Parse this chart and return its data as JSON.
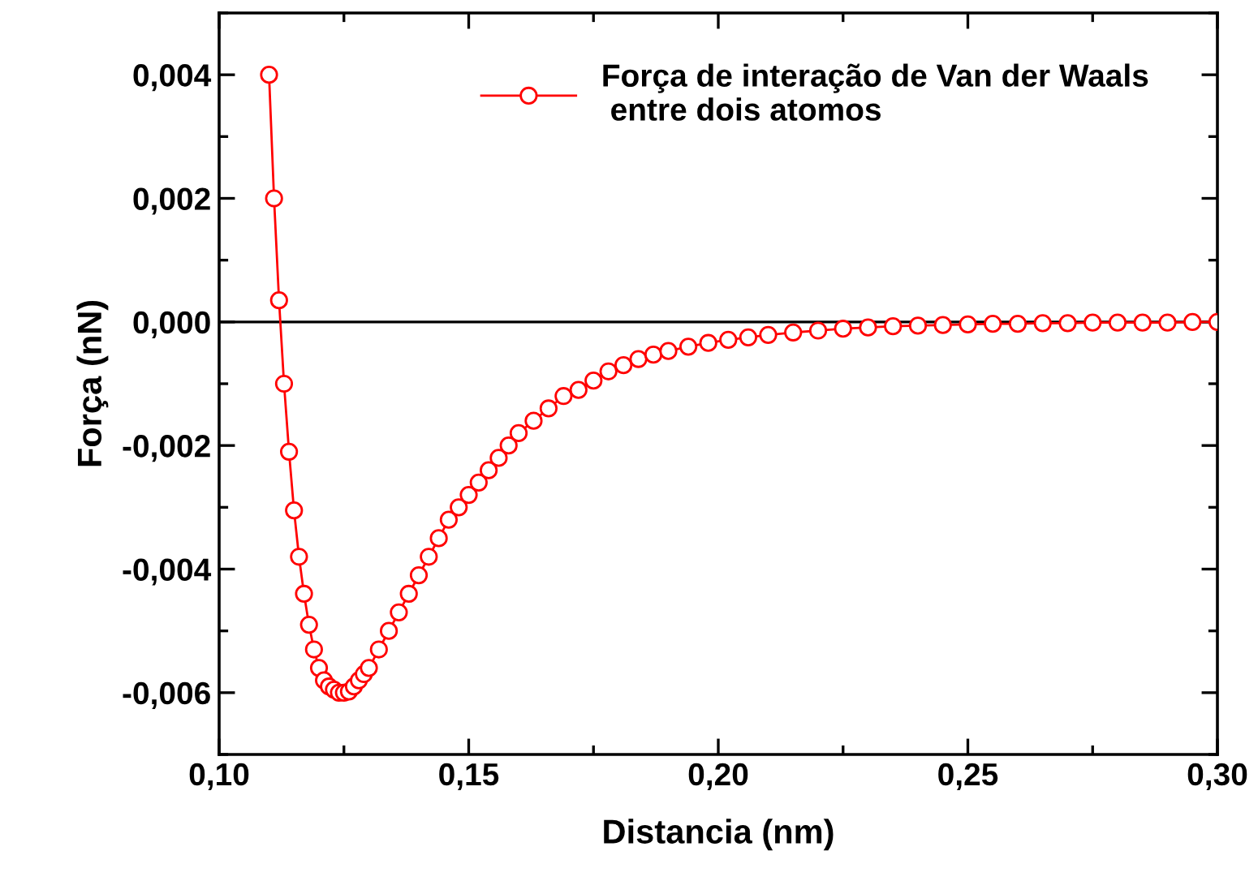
{
  "chart_data": {
    "type": "line",
    "xlabel": "Distancia (nm)",
    "ylabel": "Força (nN)",
    "xlim": [
      0.1,
      0.3
    ],
    "ylim": [
      -0.007,
      0.005
    ],
    "xticks": [
      {
        "value": 0.1,
        "label": "0,10"
      },
      {
        "value": 0.15,
        "label": "0,15"
      },
      {
        "value": 0.2,
        "label": "0,20"
      },
      {
        "value": 0.25,
        "label": "0,25"
      },
      {
        "value": 0.3,
        "label": "0,30"
      }
    ],
    "yticks": [
      {
        "value": -0.006,
        "label": "-0,006"
      },
      {
        "value": -0.004,
        "label": "-0,004"
      },
      {
        "value": -0.002,
        "label": "-0,002"
      },
      {
        "value": 0.0,
        "label": "0,000"
      },
      {
        "value": 0.002,
        "label": "0,002"
      },
      {
        "value": 0.004,
        "label": "0,004"
      }
    ],
    "ref_lines": [
      {
        "axis": "y",
        "value": 0.0,
        "color": "#000000"
      }
    ],
    "marker": "circle",
    "legend": "top right",
    "series": [
      {
        "name": "Força de interação de Van der Waals\n entre dois atomos",
        "color": "#ff0000",
        "x": [
          0.11,
          0.111,
          0.112,
          0.113,
          0.114,
          0.115,
          0.116,
          0.117,
          0.118,
          0.119,
          0.12,
          0.121,
          0.122,
          0.123,
          0.124,
          0.125,
          0.126,
          0.127,
          0.128,
          0.129,
          0.13,
          0.132,
          0.134,
          0.136,
          0.138,
          0.14,
          0.142,
          0.144,
          0.146,
          0.148,
          0.15,
          0.152,
          0.154,
          0.156,
          0.158,
          0.16,
          0.163,
          0.166,
          0.169,
          0.172,
          0.175,
          0.178,
          0.181,
          0.184,
          0.187,
          0.19,
          0.194,
          0.198,
          0.202,
          0.206,
          0.21,
          0.215,
          0.22,
          0.225,
          0.23,
          0.235,
          0.24,
          0.245,
          0.25,
          0.255,
          0.26,
          0.265,
          0.27,
          0.275,
          0.28,
          0.285,
          0.29,
          0.295,
          0.3
        ],
        "values": [
          0.004,
          0.002,
          0.00035,
          -0.001,
          -0.0021,
          -0.00305,
          -0.0038,
          -0.0044,
          -0.0049,
          -0.0053,
          -0.0056,
          -0.0058,
          -0.0059,
          -0.00595,
          -0.006,
          -0.006,
          -0.00598,
          -0.0059,
          -0.0058,
          -0.0057,
          -0.0056,
          -0.0053,
          -0.005,
          -0.0047,
          -0.0044,
          -0.0041,
          -0.0038,
          -0.0035,
          -0.0032,
          -0.003,
          -0.0028,
          -0.0026,
          -0.0024,
          -0.0022,
          -0.002,
          -0.0018,
          -0.0016,
          -0.0014,
          -0.0012,
          -0.0011,
          -0.00095,
          -0.0008,
          -0.0007,
          -0.0006,
          -0.00053,
          -0.00047,
          -0.0004,
          -0.00034,
          -0.00029,
          -0.00025,
          -0.00021,
          -0.00017,
          -0.00014,
          -0.00011,
          -9e-05,
          -7e-05,
          -6e-05,
          -5e-05,
          -4e-05,
          -3e-05,
          -3e-05,
          -2e-05,
          -2e-05,
          -1e-05,
          -1e-05,
          -1e-05,
          -1e-05,
          0.0,
          0.0
        ]
      }
    ]
  }
}
